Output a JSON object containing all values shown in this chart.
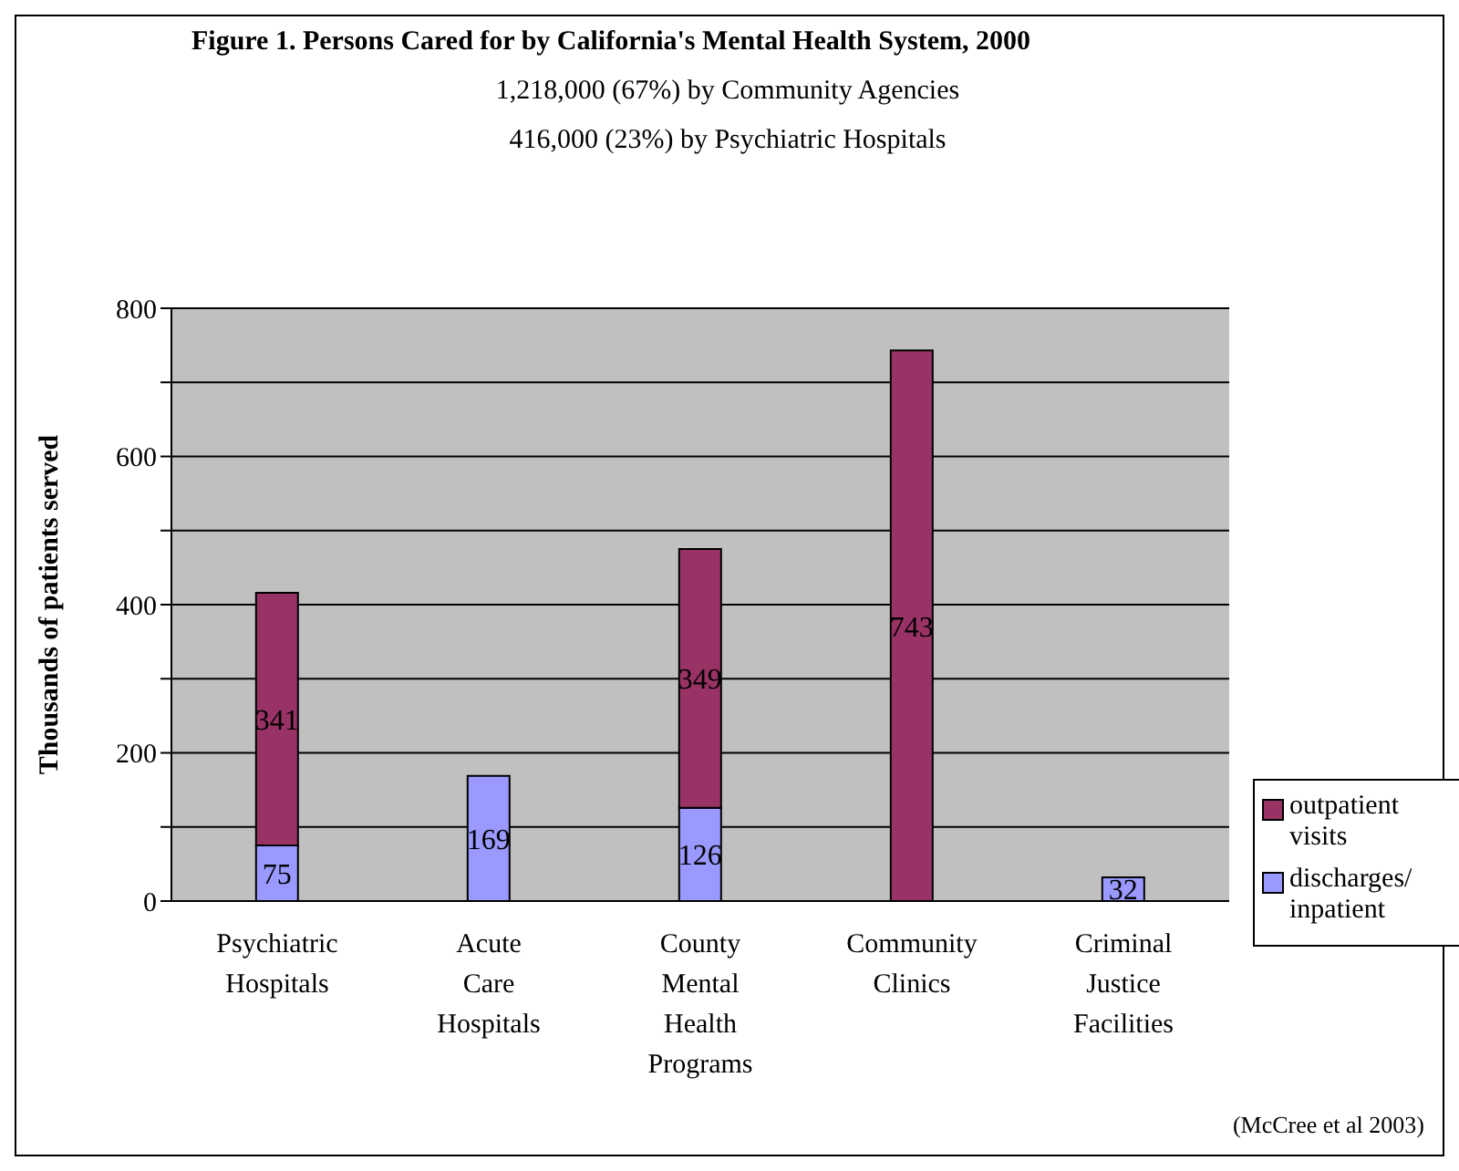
{
  "chart_data": {
    "type": "bar",
    "title": "Figure 1. Persons Cared for by California's Mental Health System, 2000",
    "subtitle": "1,218,000 (67%) by Community Agencies\n416,000 (23%) by Psychiatric Hospitals",
    "ylabel": "Thousands of patients served",
    "categories": [
      "Psychiatric Hospitals",
      "Acute Care Hospitals",
      "County Mental Health Programs",
      "Community Clinics",
      "Criminal Justice Facilities"
    ],
    "series": [
      {
        "name": "discharges/ inpatient",
        "color": "#9999ff",
        "values": [
          75,
          169,
          126,
          null,
          32
        ]
      },
      {
        "name": "outpatient visits",
        "color": "#993366",
        "values": [
          341,
          null,
          349,
          743,
          null
        ]
      }
    ],
    "stacked": true,
    "data_labels": true,
    "ylim": [
      0,
      800
    ],
    "yticks": [
      0,
      {
        "value": 100,
        "label": null
      },
      200,
      {
        "value": 300,
        "label": null
      },
      400,
      {
        "value": 500,
        "label": null
      },
      600,
      {
        "value": 700,
        "label": null
      },
      800
    ],
    "grid": "y",
    "legend": "right",
    "annotations": [
      "(McCree et al 2003)"
    ]
  }
}
